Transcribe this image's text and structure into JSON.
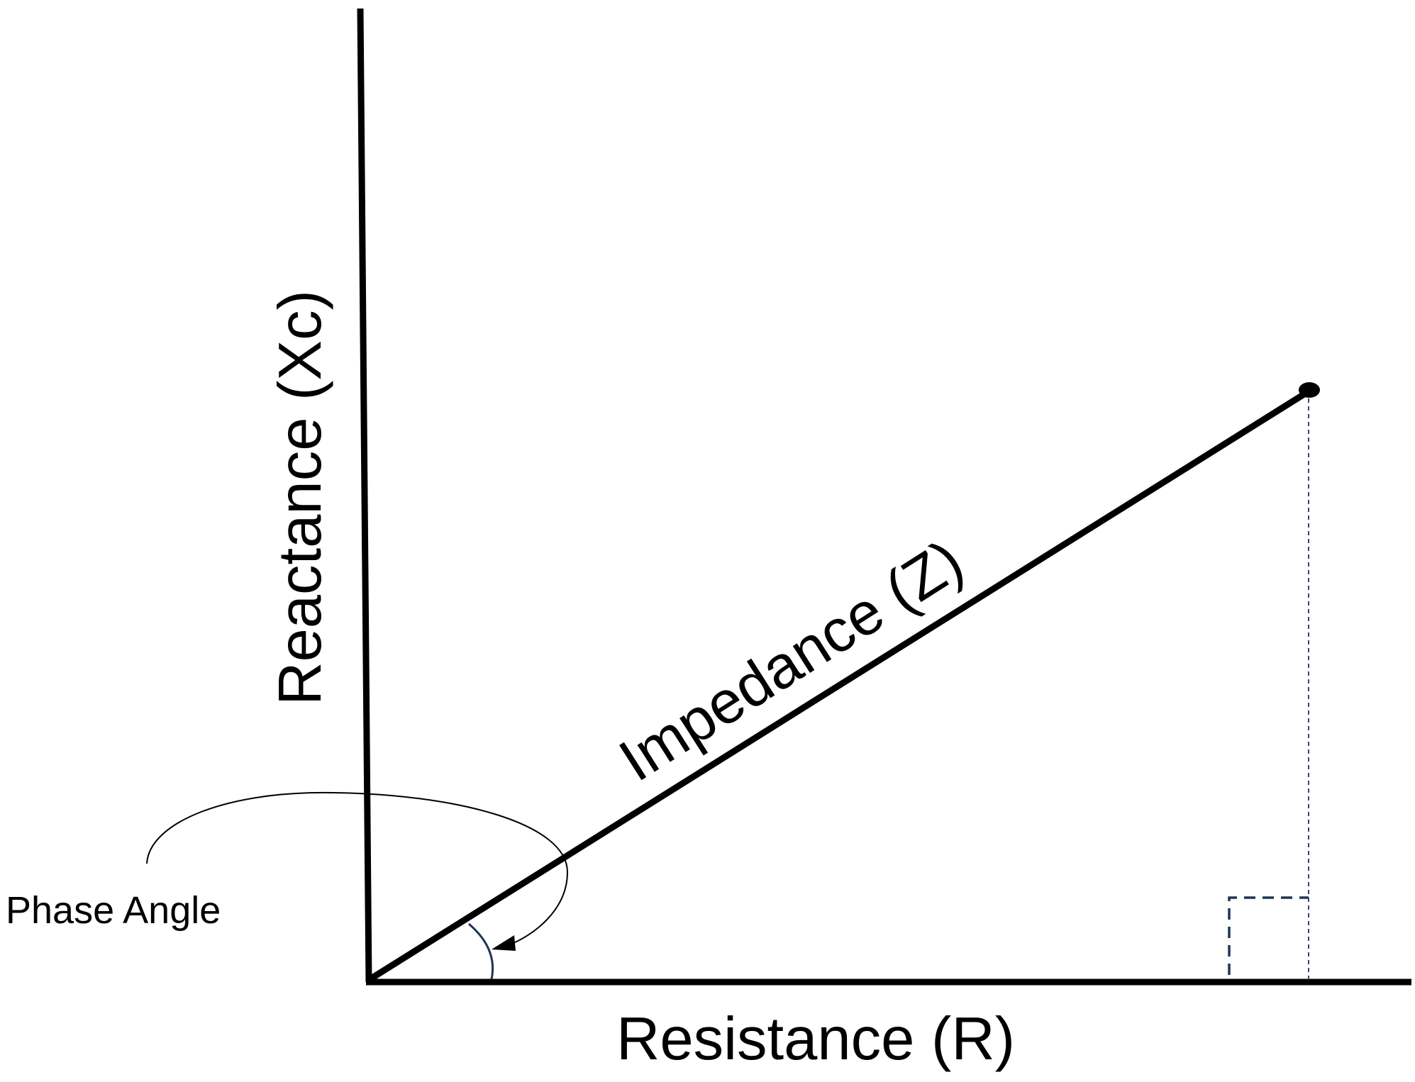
{
  "diagram": {
    "labels": {
      "y_axis": "Reactance (Xc)",
      "x_axis": "Resistance (R)",
      "hypotenuse": "Impedance (Z)",
      "angle": "Phase Angle"
    },
    "colors": {
      "line": "#000000",
      "angle_arc": "#1f3556",
      "right_angle_marker": "#1f3556",
      "dotted_projection": "#1f3556",
      "background": "#ffffff"
    }
  }
}
